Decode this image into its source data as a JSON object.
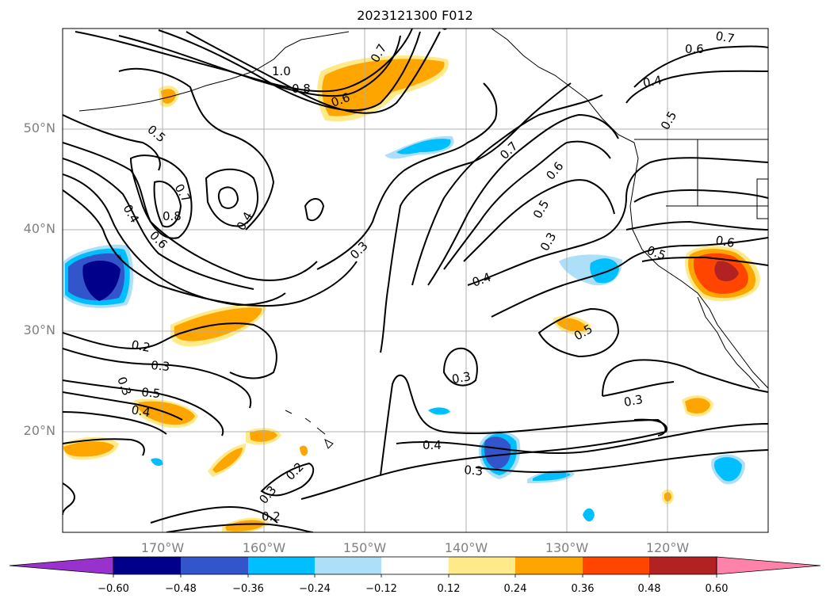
{
  "title": "2023121300 F012",
  "lat_labels": [
    "50°N",
    "40°N",
    "30°N",
    "20°N"
  ],
  "lon_labels": [
    "170°W",
    "160°W",
    "150°W",
    "140°W",
    "130°W",
    "120°W"
  ],
  "colorbar": {
    "ticks": [
      "−0.60",
      "−0.48",
      "−0.36",
      "−0.24",
      "−0.12",
      "0.12",
      "0.24",
      "0.36",
      "0.48",
      "0.60"
    ],
    "colors": [
      "#9932CC",
      "#00008B",
      "#3355CC",
      "#00BFFF",
      "#ADDFF8",
      "#FFFFFF",
      "#FFEA8A",
      "#FFA500",
      "#FF4500",
      "#B22222",
      "#FF82AB"
    ]
  },
  "contour_labels": {
    "c1": "1.0",
    "c2": "0.8",
    "c3": "0.7",
    "c4": "0.6",
    "c5": "0.5",
    "c6": "0.7",
    "c7": "0.8",
    "c8": "0.6",
    "c9": "0.4",
    "c10": "0.4",
    "c11": "0.3",
    "c12": "0.7",
    "c13": "0.6",
    "c14": "0.5",
    "c15": "0.3",
    "c16": "0.4",
    "c17": "0.5",
    "c18": "0.6",
    "c19": "0.5",
    "c20": "0.4",
    "c21": "0.6",
    "c22": "0.7",
    "c23": "0.5",
    "c24": "0.2",
    "c25": "0.3",
    "c26": "0.5",
    "c27": "0.4",
    "c28": "0.3",
    "c29": "0.3",
    "c30": "0.4",
    "c31": "0.3",
    "c32": "0.3",
    "c33": "0.2",
    "c34": "0.3",
    "c35": "0.2",
    "c36": "0.3"
  },
  "colors": {
    "frame": "#000000",
    "grid": "#b0b0b0",
    "axis_text": "#808080"
  }
}
